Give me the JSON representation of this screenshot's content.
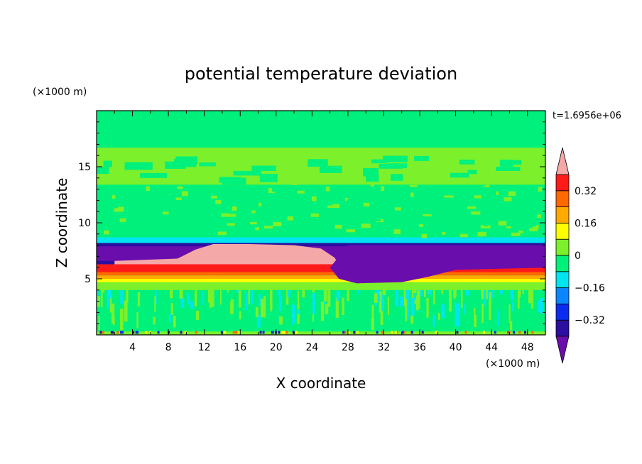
{
  "chart_data": {
    "type": "heatmap",
    "title": "potential temperature deviation",
    "xlabel": "X coordinate",
    "ylabel": "Z coordinate",
    "x_unit": "(×1000 m)",
    "y_unit": "(×1000 m)",
    "time_label": "t=1.6956e+06",
    "xlim": [
      0,
      50
    ],
    "ylim": [
      0,
      20
    ],
    "x_ticks": [
      4,
      8,
      12,
      16,
      20,
      24,
      28,
      32,
      36,
      40,
      44,
      48
    ],
    "y_ticks": [
      5,
      10,
      15
    ],
    "colorbar": {
      "levels": [
        -0.4,
        -0.32,
        -0.24,
        -0.16,
        -0.08,
        0,
        0.08,
        0.16,
        0.24,
        0.32,
        0.4
      ],
      "labels": [
        {
          "value": 0.32,
          "text": "0.32"
        },
        {
          "value": 0.16,
          "text": "0.16"
        },
        {
          "value": 0,
          "text": "0"
        },
        {
          "value": -0.16,
          "text": "−0.16"
        },
        {
          "value": -0.32,
          "text": "−0.32"
        }
      ],
      "colors_low_to_high": [
        "#6a0dad",
        "#2c0fa0",
        "#0b2cf0",
        "#0a86ff",
        "#00e5f0",
        "#00f07c",
        "#7cf02a",
        "#ffff00",
        "#ffaa00",
        "#ff6a00",
        "#ff1a1a",
        "#f4a8a8"
      ],
      "extend": "both"
    },
    "regions": [
      {
        "z": [
          0.0,
          0.3
        ],
        "x": [
          0,
          50
        ],
        "level": "0 to 0.08"
      },
      {
        "z": [
          0.3,
          4.0
        ],
        "x": [
          0,
          50
        ],
        "level": "0 to 0.08"
      },
      {
        "z": [
          4.0,
          4.7
        ],
        "x": [
          0,
          50
        ],
        "level": "0.08 to 0.16"
      },
      {
        "z": [
          4.7,
          5.0
        ],
        "x": [
          0,
          50
        ],
        "level": "0.16 to 0.24"
      },
      {
        "z": [
          5.0,
          5.3
        ],
        "x": [
          0,
          50
        ],
        "level": "0.24 to 0.32"
      },
      {
        "z": [
          5.3,
          5.9
        ],
        "x": [
          0,
          50
        ],
        "level": "0.32 to 0.4"
      },
      {
        "z": [
          5.9,
          6.3
        ],
        "x": [
          0,
          50
        ],
        "level": "0.32 to 0.4"
      },
      {
        "z": [
          6.0,
          8.0
        ],
        "x": [
          2,
          27
        ],
        "level": "> 0.4"
      },
      {
        "z": [
          4.5,
          8.0
        ],
        "x": [
          26,
          50
        ],
        "level": "< -0.4"
      },
      {
        "z": [
          6.3,
          8.2
        ],
        "x": [
          0,
          50
        ],
        "level": "-0.4 to -0.32"
      },
      {
        "z": [
          8.2,
          13.0
        ],
        "x": [
          0,
          50
        ],
        "level": "0 to 0.08"
      },
      {
        "z": [
          13.0,
          17.0
        ],
        "x": [
          0,
          50
        ],
        "level": "0.08 to 0.16"
      },
      {
        "z": [
          17.0,
          20.0
        ],
        "x": [
          0,
          50
        ],
        "level": "0 to 0.08"
      }
    ]
  }
}
